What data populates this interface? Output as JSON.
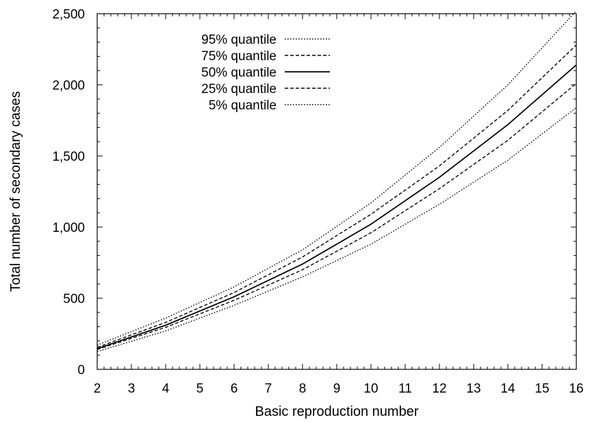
{
  "chart_data": {
    "type": "line",
    "xlabel": "Basic reproduction number",
    "ylabel": "Total number of secondary cases",
    "xlim": [
      2,
      16
    ],
    "ylim": [
      0,
      2500
    ],
    "xticks": [
      2,
      3,
      4,
      5,
      6,
      7,
      8,
      9,
      10,
      11,
      12,
      13,
      14,
      15,
      16
    ],
    "yticks": [
      0,
      500,
      1000,
      1500,
      2000,
      2500
    ],
    "ytick_labels": [
      "0",
      "500",
      "1,000",
      "1,500",
      "2,000",
      "2,500"
    ],
    "grid": false,
    "legend_position": "top-left",
    "x": [
      2,
      4,
      6,
      8,
      10,
      12,
      14,
      16
    ],
    "series": [
      {
        "name": "95% quantile",
        "style": "dotted",
        "values": [
          170,
          360,
          580,
          840,
          1170,
          1560,
          2000,
          2520
        ]
      },
      {
        "name": "75% quantile",
        "style": "dashed",
        "values": [
          155,
          330,
          540,
          790,
          1090,
          1430,
          1820,
          2280
        ]
      },
      {
        "name": "50% quantile",
        "style": "solid",
        "values": [
          145,
          310,
          510,
          740,
          1020,
          1350,
          1720,
          2140
        ]
      },
      {
        "name": "25% quantile",
        "style": "dashed",
        "values": [
          140,
          295,
          485,
          700,
          960,
          1270,
          1610,
          2010
        ]
      },
      {
        "name": "5% quantile",
        "style": "dotted",
        "values": [
          125,
          270,
          450,
          650,
          880,
          1160,
          1470,
          1840
        ]
      }
    ]
  }
}
